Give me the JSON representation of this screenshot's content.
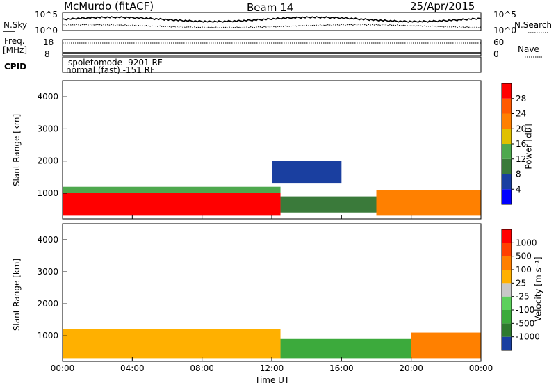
{
  "header": {
    "station": "McMurdo (fitACF)",
    "beam": "Beam 14",
    "date": "25/Apr/2015"
  },
  "noise_panel": {
    "left_label": "N.Sky",
    "right_label": "N.Search",
    "left_ticks": [
      "10^5",
      "10^0"
    ],
    "right_ticks": [
      "10^5",
      "10^0"
    ]
  },
  "freq_panel": {
    "left_label_1": "Freq.",
    "left_label_2": "[MHz]",
    "left_ticks": [
      "18",
      "8"
    ],
    "right_label": "Nave",
    "right_ticks": [
      "60",
      "0"
    ]
  },
  "cpid": {
    "label": "CPID",
    "modes": [
      "spoletomode -9201 RF",
      "normal (fast) -151 RF"
    ]
  },
  "chart_data": [
    {
      "type": "heatmap",
      "name_of_panel": "power",
      "ylabel": "Slant Range [km]",
      "xlabel": "Time UT",
      "ylim": [
        200,
        4500
      ],
      "yticks": [
        "1000",
        "2000",
        "3000",
        "4000"
      ],
      "xticks": [
        "00:00",
        "04:00",
        "08:00",
        "12:00",
        "16:00",
        "20:00",
        "00:00"
      ],
      "xlim_hours": [
        0,
        24
      ],
      "colorbar": {
        "label": "Power [dB]",
        "ticks": [
          "4",
          "8",
          "12",
          "16",
          "20",
          "24",
          "28"
        ],
        "colors": [
          "#0000ff",
          "#1a3fa0",
          "#3a7a3a",
          "#4ea84e",
          "#e0c000",
          "#ff8000",
          "#ff5a00",
          "#ff0000"
        ]
      },
      "regions": [
        {
          "t0": 0.0,
          "t1": 12.5,
          "r0": 300,
          "r1": 1000,
          "level": 7
        },
        {
          "t0": 0.0,
          "t1": 12.5,
          "r0": 1000,
          "r1": 1200,
          "level": 3
        },
        {
          "t0": 12.5,
          "t1": 18.0,
          "r0": 400,
          "r1": 900,
          "level": 2
        },
        {
          "t0": 18.0,
          "t1": 24.0,
          "r0": 300,
          "r1": 1100,
          "level": 5
        },
        {
          "t0": 12.0,
          "t1": 16.0,
          "r0": 1300,
          "r1": 2000,
          "level": 1
        }
      ]
    },
    {
      "type": "heatmap",
      "name_of_panel": "velocity",
      "ylabel": "Slant Range [km]",
      "xlabel": "Time UT",
      "ylim": [
        200,
        4500
      ],
      "yticks": [
        "1000",
        "2000",
        "3000",
        "4000"
      ],
      "xticks": [
        "00:00",
        "04:00",
        "08:00",
        "12:00",
        "16:00",
        "20:00",
        "00:00"
      ],
      "xlim_hours": [
        0,
        24
      ],
      "colorbar": {
        "label": "Velocity [m s⁻¹]",
        "ticks": [
          "1000",
          "500",
          "100",
          "25",
          "-25",
          "-100",
          "-500",
          "-1000"
        ],
        "colors": [
          "#1a3fa0",
          "#2e7a2e",
          "#3caa3c",
          "#5cd05c",
          "#c8c8c8",
          "#ffb000",
          "#ff8000",
          "#ff4000",
          "#ff0000"
        ]
      },
      "regions": [
        {
          "t0": 0.0,
          "t1": 12.5,
          "r0": 300,
          "r1": 1200,
          "level": 5
        },
        {
          "t0": 12.5,
          "t1": 20.0,
          "r0": 300,
          "r1": 900,
          "level": 2
        },
        {
          "t0": 20.0,
          "t1": 24.0,
          "r0": 300,
          "r1": 1100,
          "level": 6
        }
      ]
    }
  ]
}
